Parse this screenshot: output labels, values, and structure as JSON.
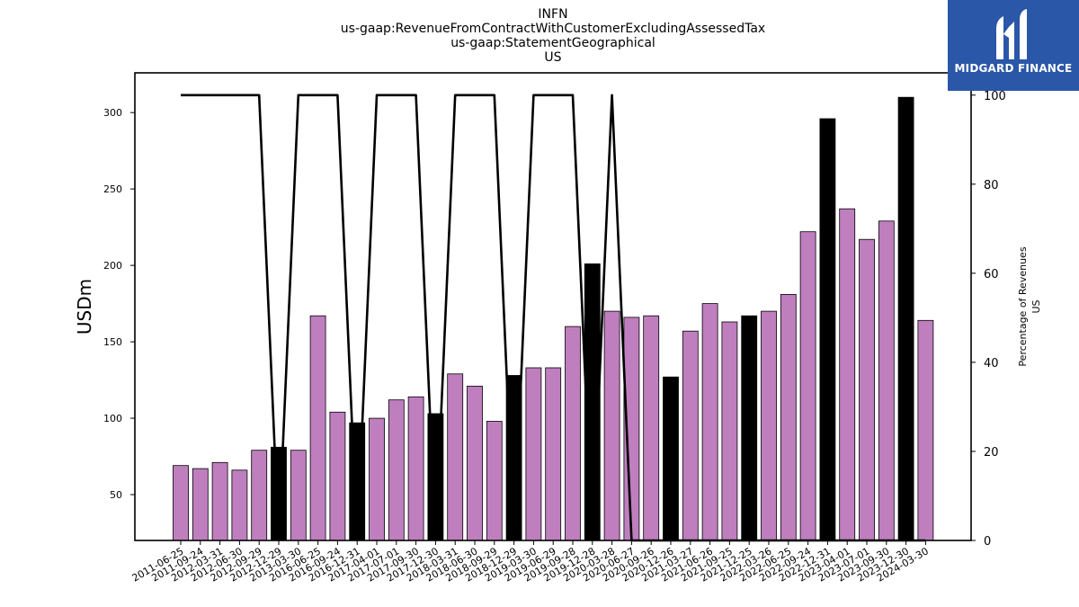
{
  "header": {
    "title_lines": [
      "INFN",
      "us-gaap:RevenueFromContractWithCustomerExcludingAssessedTax",
      "us-gaap:StatementGeographical",
      "US"
    ]
  },
  "logo": {
    "text": "MIDGARD FINANCE",
    "bg_color": "#2b57a8"
  },
  "chart_data": {
    "type": "bar",
    "categories": [
      "2011-06-25",
      "2011-09-24",
      "2012-03-31",
      "2012-06-30",
      "2012-09-29",
      "2012-12-29",
      "2013-03-30",
      "2016-06-25",
      "2016-09-24",
      "2016-12-31",
      "2017-04-01",
      "2017-07-01",
      "2017-09-30",
      "2017-12-30",
      "2018-03-31",
      "2018-06-30",
      "2018-09-29",
      "2018-12-29",
      "2019-03-30",
      "2019-06-29",
      "2019-09-28",
      "2019-12-28",
      "2020-03-28",
      "2020-06-27",
      "2020-09-26",
      "2020-12-26",
      "2021-03-27",
      "2021-06-26",
      "2021-09-25",
      "2021-12-25",
      "2022-03-26",
      "2022-06-25",
      "2022-09-24",
      "2022-12-31",
      "2023-04-01",
      "2023-07-01",
      "2023-09-30",
      "2023-12-30",
      "2024-03-30"
    ],
    "series": [
      {
        "axis": "left",
        "values": [
          69,
          67,
          71,
          66,
          79,
          81,
          79,
          167,
          104,
          97,
          100,
          112,
          114,
          103,
          129,
          121,
          98,
          128,
          133,
          133,
          160,
          201,
          170,
          166,
          167,
          127,
          157,
          175,
          163,
          167,
          170,
          181,
          222,
          296,
          237,
          217,
          229,
          310,
          164
        ],
        "highlight": [
          false,
          false,
          false,
          false,
          false,
          true,
          false,
          false,
          false,
          true,
          false,
          false,
          false,
          true,
          false,
          false,
          false,
          true,
          false,
          false,
          false,
          true,
          false,
          false,
          false,
          true,
          false,
          false,
          false,
          true,
          false,
          false,
          false,
          true,
          false,
          false,
          false,
          true,
          false
        ]
      },
      {
        "axis": "right",
        "type": "line",
        "values": [
          100,
          100,
          100,
          100,
          100,
          0,
          100,
          100,
          100,
          0,
          100,
          100,
          100,
          0,
          100,
          100,
          100,
          0,
          100,
          100,
          100,
          0,
          100,
          0,
          0,
          0,
          0,
          0,
          0,
          0,
          0,
          0,
          0,
          0,
          0,
          0,
          0,
          0,
          0
        ]
      }
    ],
    "ylabel": "USDm",
    "y2label_lines": [
      "Percentage of Revenues",
      "US"
    ],
    "ylim": [
      20,
      326
    ],
    "y2lim": [
      0,
      105
    ],
    "yticks": [
      50,
      100,
      150,
      200,
      250,
      300
    ],
    "y2ticks": [
      0,
      20,
      40,
      60,
      80,
      100
    ],
    "colors": {
      "bar": "#bf7fbf",
      "highlight_bar": "#000000",
      "line": "#000000"
    },
    "grid": false
  }
}
